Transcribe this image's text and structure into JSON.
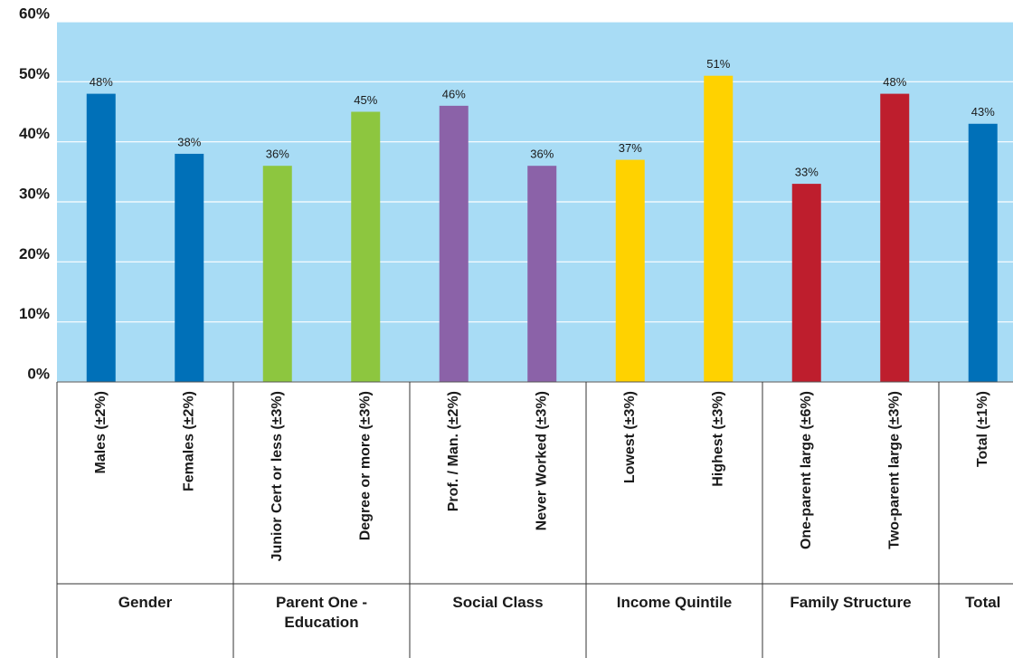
{
  "chart_data": {
    "type": "bar",
    "categories": [
      "Males (±2%)",
      "Females (±2%)",
      "Junior Cert or less (±3%)",
      "Degree or more (±3%)",
      "Prof. / Man. (±2%)",
      "Never Worked (±3%)",
      "Lowest (±3%)",
      "Highest (±3%)",
      "One-parent large (±6%)",
      "Two-parent large (±3%)",
      "Total (±1%)"
    ],
    "values": [
      48,
      38,
      36,
      45,
      46,
      36,
      37,
      51,
      33,
      48,
      43
    ],
    "value_labels": [
      "48%",
      "38%",
      "36%",
      "45%",
      "46%",
      "36%",
      "37%",
      "51%",
      "33%",
      "48%",
      "43%"
    ],
    "colors": [
      "#0070b8",
      "#0070b8",
      "#8dc63f",
      "#8dc63f",
      "#8b62a8",
      "#8b62a8",
      "#ffd200",
      "#ffd200",
      "#be1e2d",
      "#be1e2d",
      "#0070b8"
    ],
    "groups": [
      {
        "name": "Gender",
        "span": 2
      },
      {
        "name": "Parent One - Education",
        "span": 2
      },
      {
        "name": "Social Class",
        "span": 2
      },
      {
        "name": "Income Quintile",
        "span": 2
      },
      {
        "name": "Family Structure",
        "span": 2
      },
      {
        "name": "Total",
        "span": 1
      }
    ],
    "ylim": [
      0,
      60
    ],
    "yticks": [
      {
        "value": 0,
        "label": "0%"
      },
      {
        "value": 10,
        "label": "10%"
      },
      {
        "value": 20,
        "label": "20%"
      },
      {
        "value": 30,
        "label": "30%"
      },
      {
        "value": 40,
        "label": "40%"
      },
      {
        "value": 50,
        "label": "50%"
      },
      {
        "value": 60,
        "label": "60%"
      }
    ],
    "grid": true,
    "background": "#a8dcf5"
  }
}
